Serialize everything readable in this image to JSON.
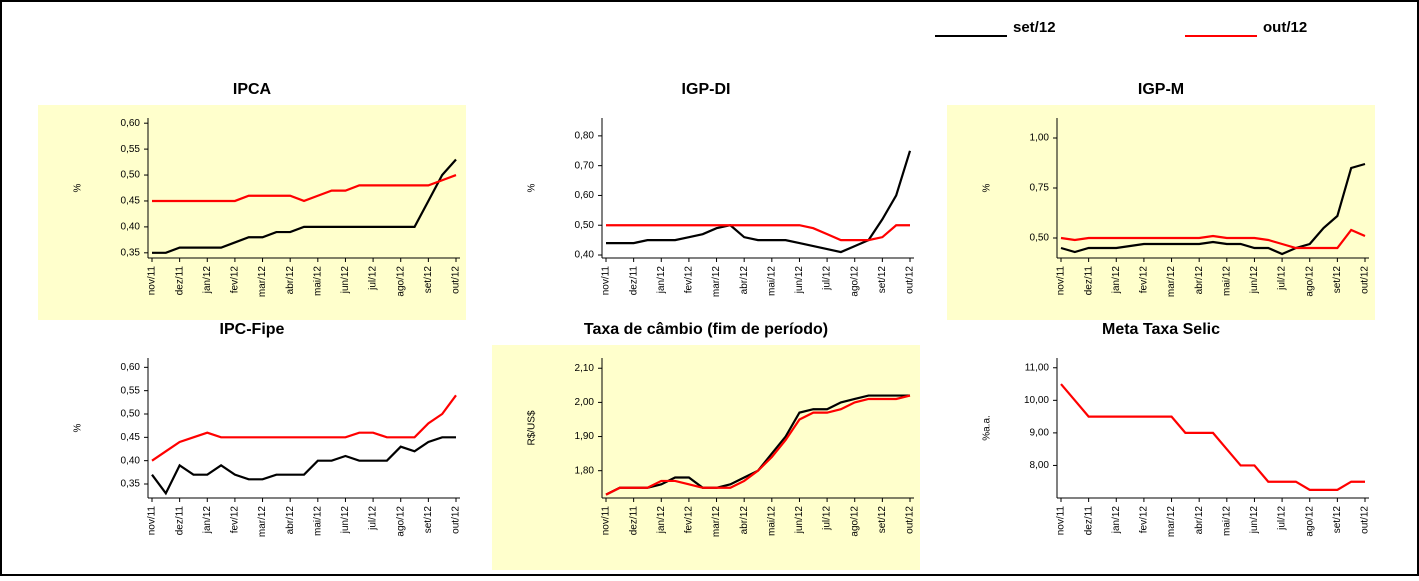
{
  "chart_data": [
    {
      "type": "line",
      "title": "IPCA",
      "ylabel": "%",
      "categories": [
        "nov/11",
        null,
        "dez/11",
        null,
        "jan/12",
        null,
        "fev/12",
        null,
        "mar/12",
        null,
        "abr/12",
        null,
        "mai/12",
        null,
        "jun/12",
        null,
        "jul/12",
        null,
        "ago/12",
        null,
        "set/12",
        null,
        "out/12"
      ],
      "series": [
        {
          "name": "set/12",
          "color": "#000000",
          "values": [
            0.35,
            0.35,
            0.36,
            0.36,
            0.36,
            0.36,
            0.37,
            0.38,
            0.38,
            0.39,
            0.39,
            0.4,
            0.4,
            0.4,
            0.4,
            0.4,
            0.4,
            0.4,
            0.4,
            0.4,
            0.45,
            0.5,
            0.53
          ]
        },
        {
          "name": "out/12",
          "color": "#ff0000",
          "values": [
            0.45,
            0.45,
            0.45,
            0.45,
            0.45,
            0.45,
            0.45,
            0.46,
            0.46,
            0.46,
            0.46,
            0.45,
            0.46,
            0.47,
            0.47,
            0.48,
            0.48,
            0.48,
            0.48,
            0.48,
            0.48,
            0.49,
            0.5
          ]
        }
      ],
      "ylim": [
        0.34,
        0.61
      ],
      "yticks": [
        {
          "value": 0.35,
          "label": "0,35"
        },
        {
          "value": 0.4,
          "label": "0,40"
        },
        {
          "value": 0.45,
          "label": "0,45"
        },
        {
          "value": 0.5,
          "label": "0,50"
        },
        {
          "value": 0.55,
          "label": "0,55"
        },
        {
          "value": 0.6,
          "label": "0,60"
        }
      ],
      "background": "#ffffcc"
    },
    {
      "type": "line",
      "title": "IGP-DI",
      "ylabel": "%",
      "categories": [
        "nov/11",
        null,
        "dez/11",
        null,
        "jan/12",
        null,
        "fev/12",
        null,
        "mar/12",
        null,
        "abr/12",
        null,
        "mai/12",
        null,
        "jun/12",
        null,
        "jul/12",
        null,
        "ago/12",
        null,
        "set/12",
        null,
        "out/12"
      ],
      "series": [
        {
          "name": "set/12",
          "color": "#000000",
          "values": [
            0.44,
            0.44,
            0.44,
            0.45,
            0.45,
            0.45,
            0.46,
            0.47,
            0.49,
            0.5,
            0.46,
            0.45,
            0.45,
            0.45,
            0.44,
            0.43,
            0.42,
            0.41,
            0.43,
            0.45,
            0.52,
            0.6,
            0.75
          ]
        },
        {
          "name": "out/12",
          "color": "#ff0000",
          "values": [
            0.5,
            0.5,
            0.5,
            0.5,
            0.5,
            0.5,
            0.5,
            0.5,
            0.5,
            0.5,
            0.5,
            0.5,
            0.5,
            0.5,
            0.5,
            0.49,
            0.47,
            0.45,
            0.45,
            0.45,
            0.46,
            0.5,
            0.5
          ]
        }
      ],
      "ylim": [
        0.39,
        0.86
      ],
      "yticks": [
        {
          "value": 0.4,
          "label": "0,40"
        },
        {
          "value": 0.5,
          "label": "0,50"
        },
        {
          "value": 0.6,
          "label": "0,60"
        },
        {
          "value": 0.7,
          "label": "0,70"
        },
        {
          "value": 0.8,
          "label": "0,80"
        }
      ],
      "background": "#ffffff"
    },
    {
      "type": "line",
      "title": "IGP-M",
      "ylabel": "%",
      "categories": [
        "nov/11",
        null,
        "dez/11",
        null,
        "jan/12",
        null,
        "fev/12",
        null,
        "mar/12",
        null,
        "abr/12",
        null,
        "mai/12",
        null,
        "jun/12",
        null,
        "jul/12",
        null,
        "ago/12",
        null,
        "set/12",
        null,
        "out/12"
      ],
      "series": [
        {
          "name": "set/12",
          "color": "#000000",
          "values": [
            0.45,
            0.43,
            0.45,
            0.45,
            0.45,
            0.46,
            0.47,
            0.47,
            0.47,
            0.47,
            0.47,
            0.48,
            0.47,
            0.47,
            0.45,
            0.45,
            0.42,
            0.45,
            0.47,
            0.55,
            0.61,
            0.85,
            0.87
          ]
        },
        {
          "name": "out/12",
          "color": "#ff0000",
          "values": [
            0.5,
            0.49,
            0.5,
            0.5,
            0.5,
            0.5,
            0.5,
            0.5,
            0.5,
            0.5,
            0.5,
            0.51,
            0.5,
            0.5,
            0.5,
            0.49,
            0.47,
            0.45,
            0.45,
            0.45,
            0.45,
            0.54,
            0.51
          ]
        }
      ],
      "ylim": [
        0.4,
        1.1
      ],
      "yticks": [
        {
          "value": 0.5,
          "label": "0,50"
        },
        {
          "value": 0.75,
          "label": "0,75"
        },
        {
          "value": 1.0,
          "label": "1,00"
        }
      ],
      "background": "#ffffcc"
    },
    {
      "type": "line",
      "title": "IPC-Fipe",
      "ylabel": "%",
      "categories": [
        "nov/11",
        null,
        "dez/11",
        null,
        "jan/12",
        null,
        "fev/12",
        null,
        "mar/12",
        null,
        "abr/12",
        null,
        "mai/12",
        null,
        "jun/12",
        null,
        "jul/12",
        null,
        "ago/12",
        null,
        "set/12",
        null,
        "out/12"
      ],
      "series": [
        {
          "name": "set/12",
          "color": "#000000",
          "values": [
            0.37,
            0.33,
            0.39,
            0.37,
            0.37,
            0.39,
            0.37,
            0.36,
            0.36,
            0.37,
            0.37,
            0.37,
            0.4,
            0.4,
            0.41,
            0.4,
            0.4,
            0.4,
            0.43,
            0.42,
            0.44,
            0.45,
            0.45
          ]
        },
        {
          "name": "out/12",
          "color": "#ff0000",
          "values": [
            0.4,
            0.42,
            0.44,
            0.45,
            0.46,
            0.45,
            0.45,
            0.45,
            0.45,
            0.45,
            0.45,
            0.45,
            0.45,
            0.45,
            0.45,
            0.46,
            0.46,
            0.45,
            0.45,
            0.45,
            0.48,
            0.5,
            0.54
          ]
        }
      ],
      "ylim": [
        0.32,
        0.62
      ],
      "yticks": [
        {
          "value": 0.35,
          "label": "0,35"
        },
        {
          "value": 0.4,
          "label": "0,40"
        },
        {
          "value": 0.45,
          "label": "0,45"
        },
        {
          "value": 0.5,
          "label": "0,50"
        },
        {
          "value": 0.55,
          "label": "0,55"
        },
        {
          "value": 0.6,
          "label": "0,60"
        }
      ],
      "background": "#ffffff"
    },
    {
      "type": "line",
      "title": "Taxa de câmbio (fim de período)",
      "ylabel": "R$/US$",
      "categories": [
        "nov/11",
        null,
        "dez/11",
        null,
        "jan/12",
        null,
        "fev/12",
        null,
        "mar/12",
        null,
        "abr/12",
        null,
        "mai/12",
        null,
        "jun/12",
        null,
        "jul/12",
        null,
        "ago/12",
        null,
        "set/12",
        null,
        "out/12"
      ],
      "series": [
        {
          "name": "set/12",
          "color": "#000000",
          "values": [
            1.73,
            1.75,
            1.75,
            1.75,
            1.76,
            1.78,
            1.78,
            1.75,
            1.75,
            1.76,
            1.78,
            1.8,
            1.85,
            1.9,
            1.97,
            1.98,
            1.98,
            2.0,
            2.01,
            2.02,
            2.02,
            2.02,
            2.02
          ]
        },
        {
          "name": "out/12",
          "color": "#ff0000",
          "values": [
            1.73,
            1.75,
            1.75,
            1.75,
            1.77,
            1.77,
            1.76,
            1.75,
            1.75,
            1.75,
            1.77,
            1.8,
            1.84,
            1.89,
            1.95,
            1.97,
            1.97,
            1.98,
            2.0,
            2.01,
            2.01,
            2.01,
            2.02
          ]
        }
      ],
      "ylim": [
        1.72,
        2.13
      ],
      "yticks": [
        {
          "value": 1.8,
          "label": "1,80"
        },
        {
          "value": 1.9,
          "label": "1,90"
        },
        {
          "value": 2.0,
          "label": "2,00"
        },
        {
          "value": 2.1,
          "label": "2,10"
        }
      ],
      "background": "#ffffcc"
    },
    {
      "type": "line",
      "title": "Meta Taxa Selic",
      "ylabel": "%a.a.",
      "categories": [
        "nov/11",
        null,
        "dez/11",
        null,
        "jan/12",
        null,
        "fev/12",
        null,
        "mar/12",
        null,
        "abr/12",
        null,
        "mai/12",
        null,
        "jun/12",
        null,
        "jul/12",
        null,
        "ago/12",
        null,
        "set/12",
        null,
        "out/12"
      ],
      "series": [
        {
          "name": "out/12",
          "color": "#ff0000",
          "values": [
            10.5,
            10.0,
            9.5,
            9.5,
            9.5,
            9.5,
            9.5,
            9.5,
            9.5,
            9.0,
            9.0,
            9.0,
            8.5,
            8.0,
            8.0,
            7.5,
            7.5,
            7.5,
            7.25,
            7.25,
            7.25,
            7.5,
            7.5
          ]
        }
      ],
      "ylim": [
        7.0,
        11.3
      ],
      "yticks": [
        {
          "value": 8,
          "label": "8,00"
        },
        {
          "value": 9,
          "label": "9,00"
        },
        {
          "value": 10,
          "label": "10,00"
        },
        {
          "value": 11,
          "label": "11,00"
        }
      ],
      "background": "#ffffff"
    }
  ]
}
